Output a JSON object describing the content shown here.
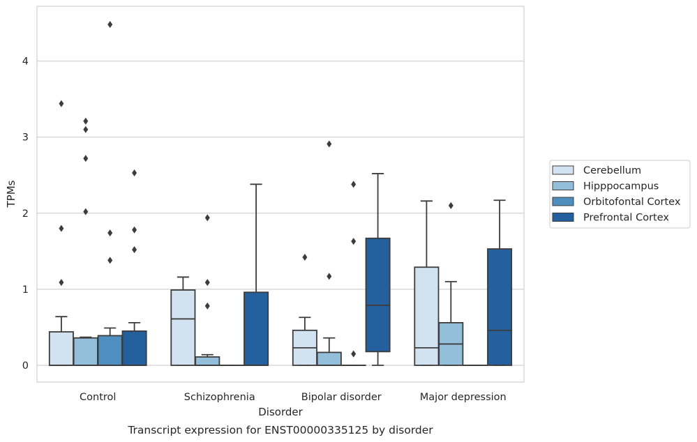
{
  "caption": "Transcript expression for ENST00000335125 by disorder",
  "colors": {
    "Cerebellum": "#d2e2f0",
    "Hipppocampus": "#94bfdb",
    "Orbitofontal Cortex": "#4f8fc0",
    "Prefrontal Cortex": "#25609e",
    "stroke": "#3c3c3c",
    "grid": "#d0d0d0"
  },
  "chart_data": {
    "type": "box",
    "xlabel": "Disorder",
    "ylabel": "TPMs",
    "ylim": [
      -0.22,
      4.72
    ],
    "yticks": [
      "0",
      "1",
      "2",
      "3",
      "4"
    ],
    "grid": "horizontal",
    "legend_position": "right",
    "categories": [
      "Control",
      "Schizophrenia",
      "Bipolar disorder",
      "Major depression"
    ],
    "series": [
      {
        "name": "Cerebellum",
        "boxes": [
          {
            "whislo": 0.0,
            "q1": 0.0,
            "med": 0.0,
            "q3": 0.44,
            "whishi": 0.64,
            "fliers": [
              1.09,
              1.8,
              3.44
            ]
          },
          {
            "whislo": 0.0,
            "q1": 0.0,
            "med": 0.61,
            "q3": 0.99,
            "whishi": 1.16,
            "fliers": []
          },
          {
            "whislo": 0.0,
            "q1": 0.0,
            "med": 0.23,
            "q3": 0.46,
            "whishi": 0.63,
            "fliers": [
              1.42
            ]
          },
          {
            "whislo": 0.0,
            "q1": 0.0,
            "med": 0.23,
            "q3": 1.29,
            "whishi": 2.16,
            "fliers": []
          }
        ]
      },
      {
        "name": "Hipppocampus",
        "boxes": [
          {
            "whislo": 0.0,
            "q1": 0.0,
            "med": 0.0,
            "q3": 0.36,
            "whishi": 0.37,
            "fliers": [
              2.02,
              2.72,
              3.1,
              3.21
            ]
          },
          {
            "whislo": 0.0,
            "q1": 0.0,
            "med": 0.0,
            "q3": 0.11,
            "whishi": 0.14,
            "fliers": [
              0.78,
              1.09,
              1.94
            ]
          },
          {
            "whislo": 0.0,
            "q1": 0.0,
            "med": 0.0,
            "q3": 0.17,
            "whishi": 0.36,
            "fliers": [
              1.17,
              2.91
            ]
          },
          {
            "whislo": 0.0,
            "q1": 0.0,
            "med": 0.28,
            "q3": 0.56,
            "whishi": 1.1,
            "fliers": [
              2.1
            ]
          }
        ]
      },
      {
        "name": "Orbitofontal Cortex",
        "boxes": [
          {
            "whislo": 0.0,
            "q1": 0.0,
            "med": 0.0,
            "q3": 0.39,
            "whishi": 0.49,
            "fliers": [
              1.38,
              1.74,
              4.48
            ]
          },
          {
            "whislo": 0.0,
            "q1": 0.0,
            "med": 0.0,
            "q3": 0.0,
            "whishi": 0.0,
            "fliers": []
          },
          {
            "whislo": 0.0,
            "q1": 0.0,
            "med": 0.0,
            "q3": 0.0,
            "whishi": 0.0,
            "fliers": [
              0.15,
              1.63,
              2.38
            ]
          },
          {
            "whislo": 0.0,
            "q1": 0.0,
            "med": 0.0,
            "q3": 0.0,
            "whishi": 0.0,
            "fliers": []
          }
        ]
      },
      {
        "name": "Prefrontal Cortex",
        "boxes": [
          {
            "whislo": 0.0,
            "q1": 0.0,
            "med": 0.0,
            "q3": 0.45,
            "whishi": 0.56,
            "fliers": [
              1.52,
              1.78,
              2.53
            ]
          },
          {
            "whislo": 0.0,
            "q1": 0.0,
            "med": 0.0,
            "q3": 0.96,
            "whishi": 2.38,
            "fliers": []
          },
          {
            "whislo": 0.0,
            "q1": 0.18,
            "med": 0.79,
            "q3": 1.67,
            "whishi": 2.52,
            "fliers": []
          },
          {
            "whislo": 0.0,
            "q1": 0.0,
            "med": 0.46,
            "q3": 1.53,
            "whishi": 2.17,
            "fliers": []
          }
        ]
      }
    ]
  }
}
